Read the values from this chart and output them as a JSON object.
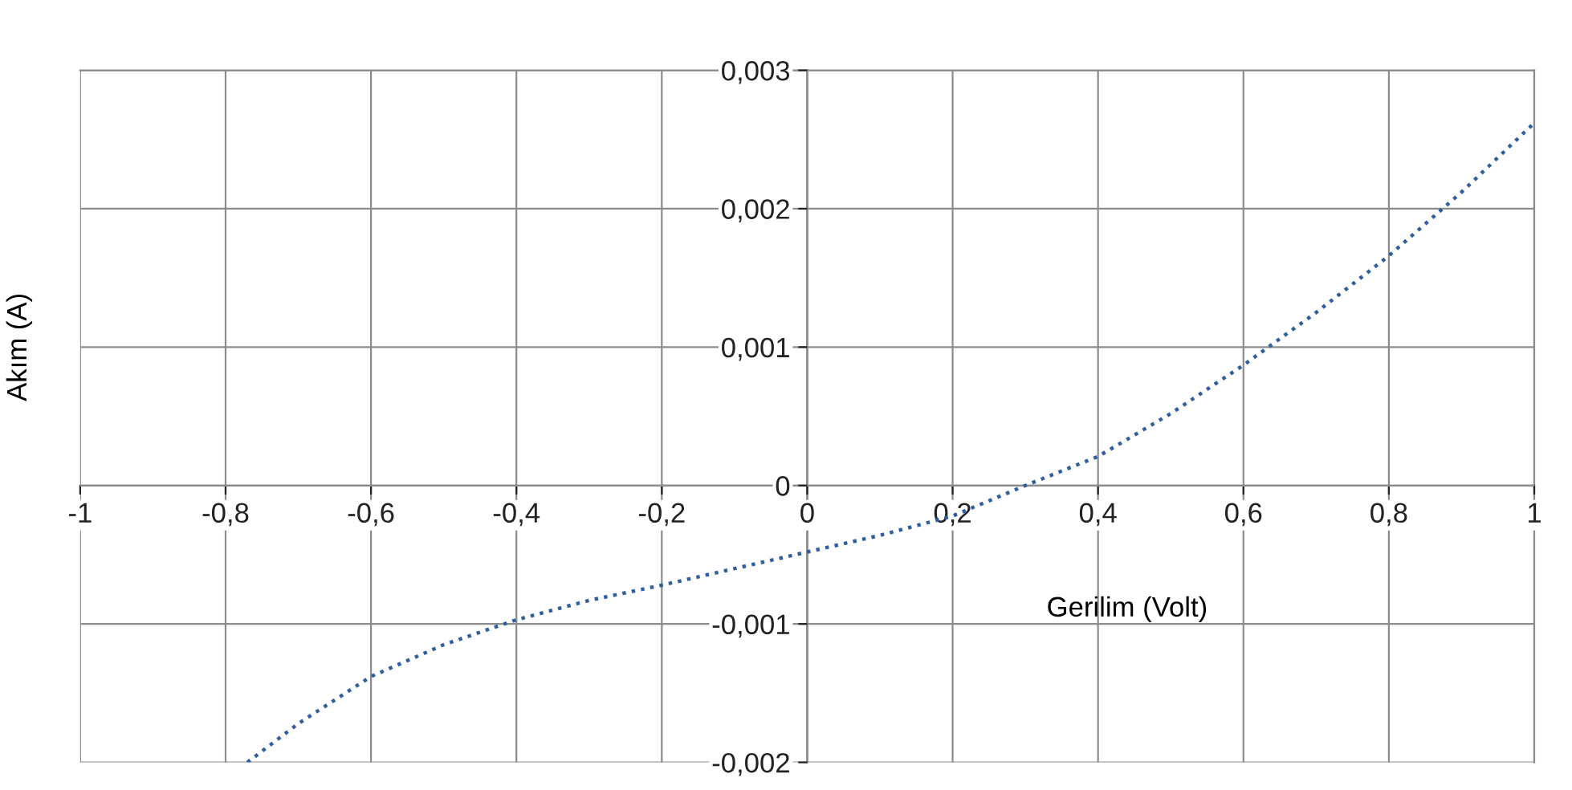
{
  "chart_data": {
    "type": "line",
    "xlabel": "Gerilim (Volt)",
    "ylabel": "Akım (A)",
    "x": [
      -0.77,
      -0.7,
      -0.6,
      -0.5,
      -0.4,
      -0.3,
      -0.2,
      -0.1,
      0,
      0.1,
      0.2,
      0.3,
      0.4,
      0.5,
      0.6,
      0.7,
      0.8,
      0.9,
      1
    ],
    "series": [
      {
        "color": "#2f5f9e",
        "values": [
          -0.002,
          -0.00172,
          -0.00138,
          -0.00115,
          -0.00097,
          -0.00083,
          -0.00072,
          -0.0006,
          -0.00048,
          -0.00036,
          -0.00022,
          0,
          0.00021,
          0.00052,
          0.00087,
          0.00125,
          0.00166,
          0.00212,
          0.00262
        ]
      }
    ],
    "xlim": [
      -1,
      1
    ],
    "ylim": [
      -0.002,
      0.003
    ],
    "xticks": [
      {
        "value": -1,
        "label": "-1"
      },
      {
        "value": -0.8,
        "label": "-0,8"
      },
      {
        "value": -0.6,
        "label": "-0,6"
      },
      {
        "value": -0.4,
        "label": "-0,4"
      },
      {
        "value": -0.2,
        "label": "-0,2"
      },
      {
        "value": 0,
        "label": "0"
      },
      {
        "value": 0.2,
        "label": "0,2"
      },
      {
        "value": 0.4,
        "label": "0,4"
      },
      {
        "value": 0.6,
        "label": "0,6"
      },
      {
        "value": 0.8,
        "label": "0,8"
      },
      {
        "value": 1,
        "label": "1"
      }
    ],
    "yticks": [
      {
        "value": -0.002,
        "label": "-0,002"
      },
      {
        "value": -0.001,
        "label": "-0,001"
      },
      {
        "value": 0,
        "label": "0"
      },
      {
        "value": 0.001,
        "label": "0,001"
      },
      {
        "value": 0.002,
        "label": "0,002"
      },
      {
        "value": 0.003,
        "label": "0,003"
      }
    ],
    "grid": true,
    "line_style": "dotted",
    "marker": "none"
  }
}
